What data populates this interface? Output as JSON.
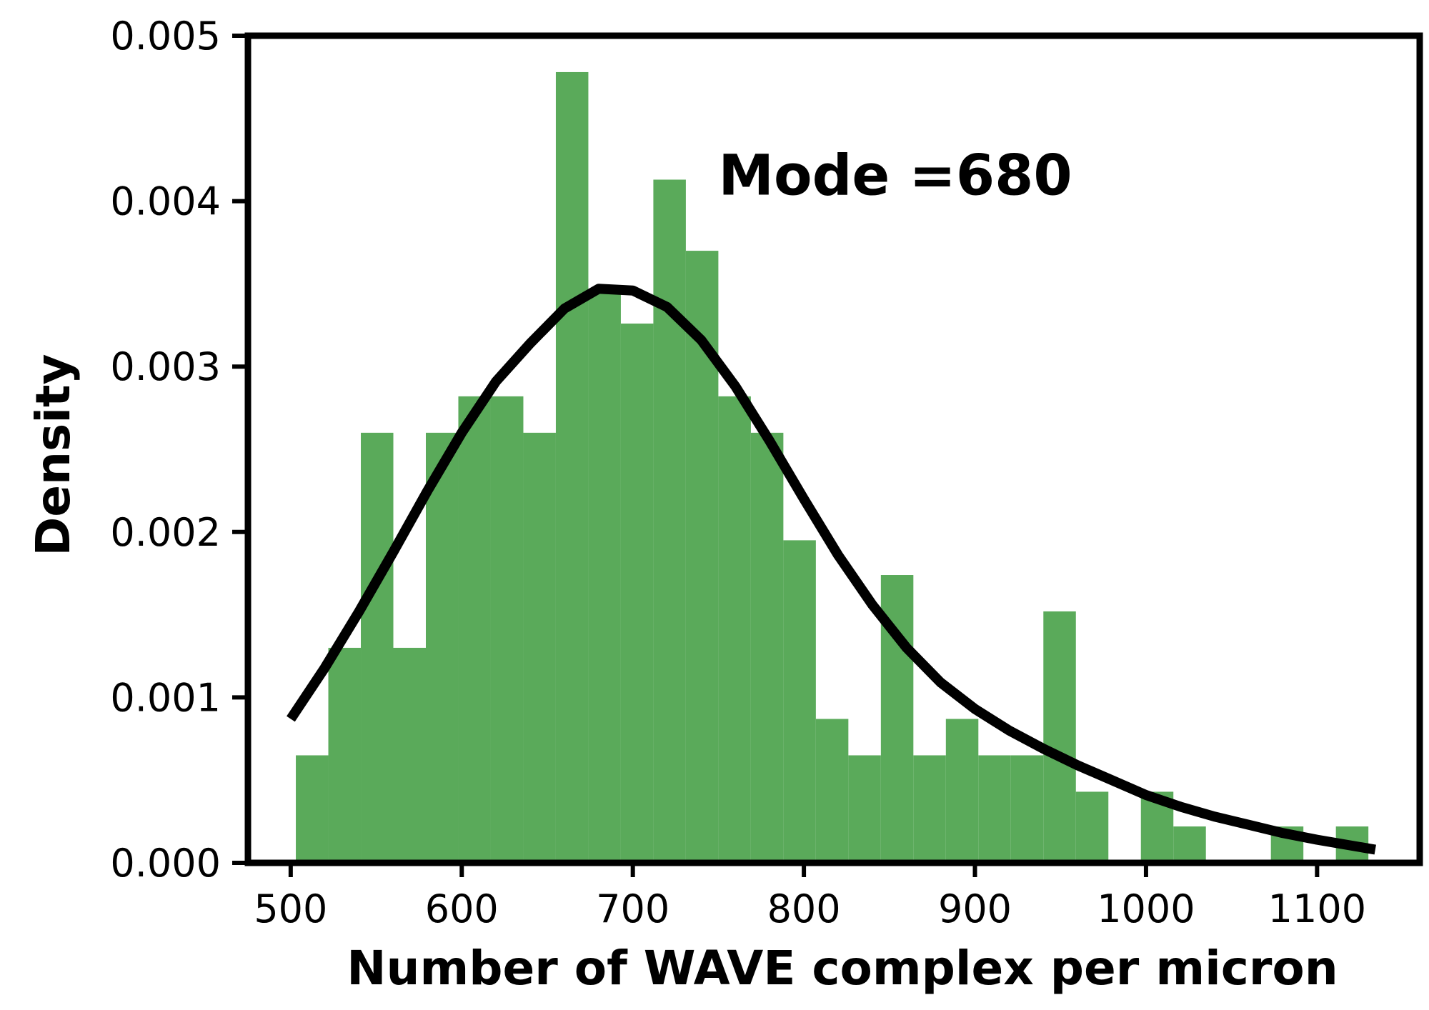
{
  "chart_data": {
    "type": "bar",
    "subtype": "histogram-with-density-curve",
    "title": "",
    "xlabel": "Number of WAVE complex per micron",
    "ylabel": "Density",
    "xlim": [
      475,
      1160
    ],
    "ylim": [
      0,
      0.005
    ],
    "xticks": [
      500,
      600,
      700,
      800,
      900,
      1000,
      1100
    ],
    "xtick_labels": [
      "500",
      "600",
      "700",
      "800",
      "900",
      "1000",
      "1100"
    ],
    "yticks": [
      0,
      0.001,
      0.002,
      0.003,
      0.004,
      0.005
    ],
    "ytick_labels": [
      "0.000",
      "0.001",
      "0.002",
      "0.003",
      "0.004",
      "0.005"
    ],
    "grid": false,
    "annotation": {
      "text": "Mode =680",
      "x": 750,
      "y": 0.00404
    },
    "histogram": {
      "color": "#5aaa5a",
      "bin_width": 19,
      "bin_left_edges": [
        503,
        522,
        541,
        560,
        579,
        598,
        617,
        636,
        655,
        674,
        693,
        712,
        731,
        750,
        769,
        788,
        807,
        826,
        845,
        864,
        883,
        902,
        921,
        940,
        959,
        978,
        997,
        1016,
        1035,
        1054,
        1073,
        1092,
        1111
      ],
      "densities": [
        0.00065,
        0.0013,
        0.0026,
        0.0013,
        0.0026,
        0.00282,
        0.00282,
        0.0026,
        0.00478,
        0.00347,
        0.00326,
        0.00413,
        0.0037,
        0.00282,
        0.0026,
        0.00195,
        0.00087,
        0.00065,
        0.00174,
        0.00065,
        0.00087,
        0.00065,
        0.00065,
        0.00152,
        0.00043,
        0,
        0.00043,
        0.00022,
        0,
        0,
        0.00022,
        0,
        0.00022
      ]
    },
    "density_curve": {
      "color": "#000000",
      "x": [
        500,
        520,
        540,
        560,
        580,
        600,
        620,
        640,
        660,
        680,
        700,
        720,
        740,
        760,
        780,
        800,
        820,
        840,
        860,
        880,
        900,
        920,
        940,
        960,
        980,
        1000,
        1020,
        1040,
        1060,
        1080,
        1100,
        1134
      ],
      "y": [
        0.00087,
        0.00118,
        0.00152,
        0.00188,
        0.00225,
        0.0026,
        0.00291,
        0.00314,
        0.00335,
        0.00347,
        0.00346,
        0.00336,
        0.00316,
        0.00288,
        0.00255,
        0.0022,
        0.00186,
        0.00156,
        0.0013,
        0.00109,
        0.00093,
        0.0008,
        0.00069,
        0.00059,
        0.0005,
        0.00041,
        0.00034,
        0.00028,
        0.00023,
        0.00018,
        0.00014,
        8e-05
      ]
    }
  }
}
